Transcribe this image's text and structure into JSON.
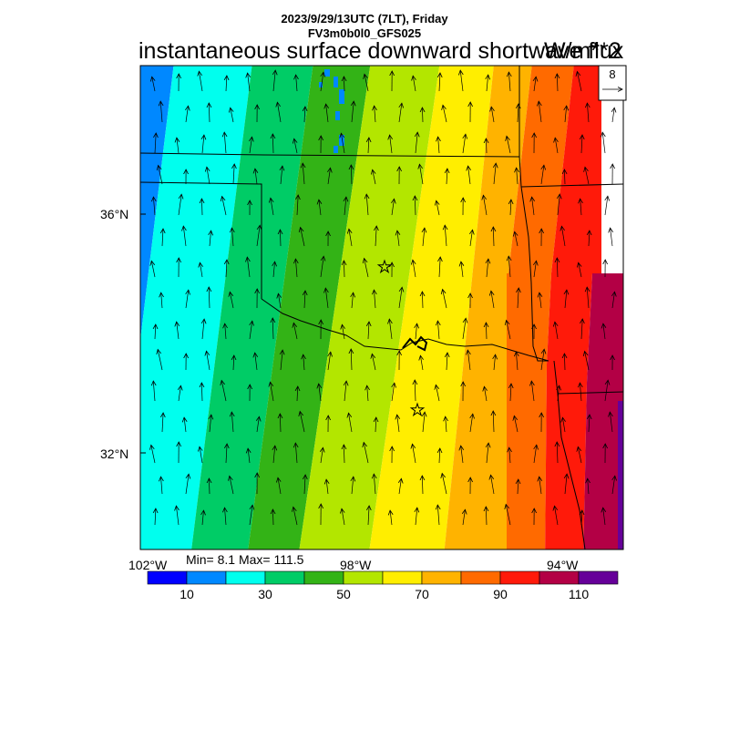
{
  "header": {
    "line1": "2023/9/29/13UTC (7LT), Friday",
    "line2": "FV3m0b0l0_GFS025"
  },
  "title": "instantaneous surface downward shortwave flux",
  "units": "W/m**2",
  "reference_vector": {
    "value": "8"
  },
  "axes": {
    "lat_labels": [
      "36°N",
      "32°N"
    ],
    "lon_labels": [
      "102°W",
      "98°W",
      "94°W"
    ]
  },
  "stats": {
    "text": "Min= 8.1 Max= 111.5",
    "min": 8.1,
    "max": 111.5
  },
  "colorbar": {
    "colors": [
      "#0000ff",
      "#0088ff",
      "#00ffee",
      "#00cc66",
      "#33b316",
      "#b3e600",
      "#ffee00",
      "#ffb300",
      "#ff6a00",
      "#ff1a0a",
      "#b30045",
      "#660099"
    ],
    "tick_labels": [
      "10",
      "30",
      "50",
      "70",
      "90",
      "110"
    ]
  },
  "markers": [
    "star",
    "star"
  ]
}
